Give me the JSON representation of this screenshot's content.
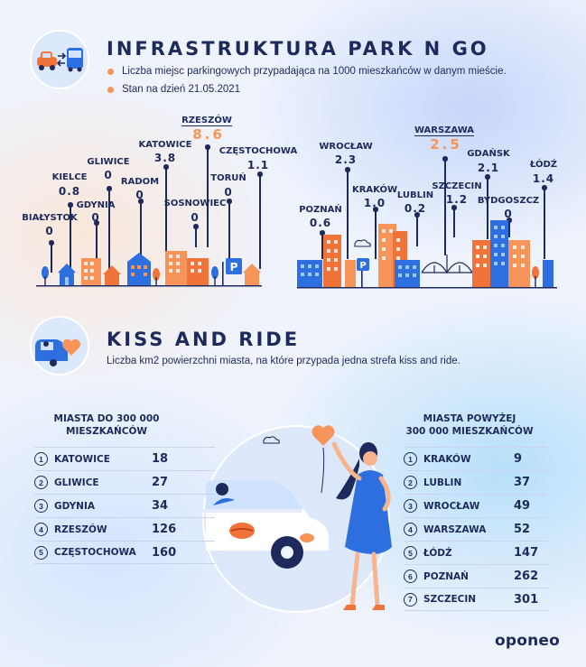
{
  "park_n_go": {
    "title": "INFRASTRUKTURA PARK N GO",
    "bullets": [
      "Liczba miejsc parkingowych przypadająca na 1000 mieszkańców w danym mieście.",
      "Stan na dzień 21.05.2021"
    ],
    "small_cities": [
      {
        "name": "BIAŁYSTOK",
        "value": "0"
      },
      {
        "name": "KIELCE",
        "value": "0.8"
      },
      {
        "name": "GDYNIA",
        "value": "0"
      },
      {
        "name": "GLIWICE",
        "value": "0"
      },
      {
        "name": "RADOM",
        "value": "0"
      },
      {
        "name": "KATOWICE",
        "value": "3.8"
      },
      {
        "name": "RZESZÓW",
        "value": "8.6"
      },
      {
        "name": "SOSNOWIEC",
        "value": "0"
      },
      {
        "name": "TORUŃ",
        "value": "0"
      },
      {
        "name": "CZĘSTOCHOWA",
        "value": "1.1"
      }
    ],
    "large_cities": [
      {
        "name": "POZNAŃ",
        "value": "0.6"
      },
      {
        "name": "WROCŁAW",
        "value": "2.3"
      },
      {
        "name": "KRAKÓW",
        "value": "1.0"
      },
      {
        "name": "LUBLIN",
        "value": "0.2"
      },
      {
        "name": "WARSZAWA",
        "value": "2.5"
      },
      {
        "name": "SZCZECIN",
        "value": "1.2"
      },
      {
        "name": "GDAŃSK",
        "value": "2.1"
      },
      {
        "name": "BYDGOSZCZ",
        "value": "0"
      },
      {
        "name": "ŁÓDŹ",
        "value": "1.4"
      }
    ],
    "parking_sign": "P"
  },
  "kiss_and_ride": {
    "title": "KISS AND RIDE",
    "description": "Liczba km2 powierzchni miasta, na które przypada jedna strefa kiss and ride.",
    "left_heading": [
      "MIASTA DO 300 000",
      "MIESZKAŃCÓW"
    ],
    "right_heading": [
      "MIASTA POWYŻEJ",
      "300 000 MIESZKAŃCÓW"
    ],
    "left_rows": [
      {
        "rank": "1",
        "city": "KATOWICE",
        "value": "18"
      },
      {
        "rank": "2",
        "city": "GLIWICE",
        "value": "27"
      },
      {
        "rank": "3",
        "city": "GDYNIA",
        "value": "34"
      },
      {
        "rank": "4",
        "city": "RZESZÓW",
        "value": "126"
      },
      {
        "rank": "5",
        "city": "CZĘSTOCHOWA",
        "value": "160"
      }
    ],
    "right_rows": [
      {
        "rank": "1",
        "city": "KRAKÓW",
        "value": "9"
      },
      {
        "rank": "2",
        "city": "LUBLIN",
        "value": "37"
      },
      {
        "rank": "3",
        "city": "WROCŁAW",
        "value": "49"
      },
      {
        "rank": "4",
        "city": "WARSZAWA",
        "value": "52"
      },
      {
        "rank": "5",
        "city": "ŁÓDŹ",
        "value": "147"
      },
      {
        "rank": "6",
        "city": "POZNAŃ",
        "value": "262"
      },
      {
        "rank": "7",
        "city": "SZCZECIN",
        "value": "301"
      }
    ]
  },
  "brand": {
    "logo": "oponeo"
  },
  "icons": [
    "car-bus-icon",
    "car-heart-icon",
    "cloud-icon",
    "tree-icon",
    "house-icon",
    "bridge-icon",
    "heart-icon"
  ],
  "colors": {
    "navy": "#1d2a5b",
    "orange": "#f0743a",
    "peach": "#f7945a",
    "blue": "#2e6fe0",
    "light_blue": "#9cc8ff"
  }
}
